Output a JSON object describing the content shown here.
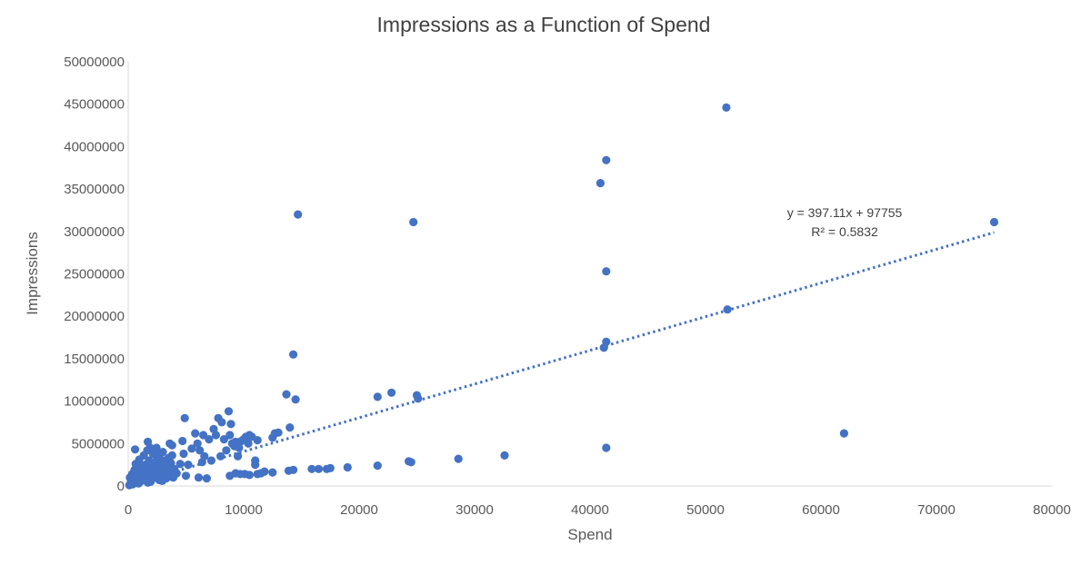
{
  "chart_data": {
    "type": "scatter",
    "title": "Impressions as a Function of Spend",
    "xlabel": "Spend",
    "ylabel": "Impressions",
    "xlim": [
      0,
      80000
    ],
    "ylim": [
      0,
      50000000
    ],
    "x_ticks": [
      0,
      10000,
      20000,
      30000,
      40000,
      50000,
      60000,
      70000,
      80000
    ],
    "y_ticks": [
      0,
      5000000,
      10000000,
      15000000,
      20000000,
      25000000,
      30000000,
      35000000,
      40000000,
      45000000,
      50000000
    ],
    "grid": false,
    "legend": "none",
    "colors": {
      "points": "#4472C4",
      "trendline": "#4472C4",
      "axis": "#d9d9d9"
    },
    "series": [
      {
        "points": [
          [
            100,
            100000
          ],
          [
            200,
            300000
          ],
          [
            300,
            500000
          ],
          [
            400,
            200000
          ],
          [
            500,
            800000
          ],
          [
            600,
            400000
          ],
          [
            700,
            1200000
          ],
          [
            800,
            600000
          ],
          [
            900,
            300000
          ],
          [
            1000,
            1500000
          ],
          [
            1100,
            900000
          ],
          [
            1200,
            2000000
          ],
          [
            1300,
            700000
          ],
          [
            1400,
            1100000
          ],
          [
            1500,
            2500000
          ],
          [
            1600,
            1800000
          ],
          [
            1700,
            400000
          ],
          [
            1800,
            3000000
          ],
          [
            1900,
            1300000
          ],
          [
            2000,
            2200000
          ],
          [
            2100,
            900000
          ],
          [
            2200,
            1600000
          ],
          [
            2300,
            2800000
          ],
          [
            2400,
            1000000
          ],
          [
            2500,
            3500000
          ],
          [
            2600,
            1900000
          ],
          [
            2700,
            700000
          ],
          [
            2800,
            2400000
          ],
          [
            2900,
            1200000
          ],
          [
            3000,
            4000000
          ],
          [
            3100,
            1700000
          ],
          [
            3200,
            3000000
          ],
          [
            3300,
            900000
          ],
          [
            3400,
            2100000
          ],
          [
            3500,
            3300000
          ],
          [
            3600,
            1400000
          ],
          [
            3700,
            2700000
          ],
          [
            3800,
            4800000
          ],
          [
            3900,
            1000000
          ],
          [
            4000,
            2000000
          ],
          [
            150,
            1000000
          ],
          [
            250,
            600000
          ],
          [
            350,
            1400000
          ],
          [
            450,
            900000
          ],
          [
            550,
            1900000
          ],
          [
            650,
            2600000
          ],
          [
            750,
            1300000
          ],
          [
            850,
            2100000
          ],
          [
            950,
            3100000
          ],
          [
            1050,
            500000
          ],
          [
            1150,
            1700000
          ],
          [
            1250,
            2400000
          ],
          [
            1350,
            3600000
          ],
          [
            1450,
            1200000
          ],
          [
            1550,
            2000000
          ],
          [
            1650,
            4200000
          ],
          [
            1750,
            1500000
          ],
          [
            1850,
            2900000
          ],
          [
            1950,
            500000
          ],
          [
            2050,
            1100000
          ],
          [
            2150,
            3800000
          ],
          [
            2250,
            2600000
          ],
          [
            2350,
            1400000
          ],
          [
            2450,
            4500000
          ],
          [
            2550,
            2200000
          ],
          [
            2650,
            1300000
          ],
          [
            2750,
            3200000
          ],
          [
            2850,
            1800000
          ],
          [
            2950,
            600000
          ],
          [
            3050,
            2500000
          ],
          [
            600,
            4300000
          ],
          [
            1700,
            5200000
          ],
          [
            1900,
            4500000
          ],
          [
            2300,
            4000000
          ],
          [
            3600,
            5000000
          ],
          [
            3800,
            3600000
          ],
          [
            4200,
            1500000
          ],
          [
            4500,
            2600000
          ],
          [
            4700,
            5300000
          ],
          [
            4800,
            3800000
          ],
          [
            4900,
            8000000
          ],
          [
            5000,
            1200000
          ],
          [
            5200,
            2500000
          ],
          [
            5500,
            4400000
          ],
          [
            5800,
            6200000
          ],
          [
            6000,
            5000000
          ],
          [
            6100,
            1000000
          ],
          [
            6200,
            4200000
          ],
          [
            6400,
            2800000
          ],
          [
            6500,
            6000000
          ],
          [
            6600,
            3500000
          ],
          [
            6800,
            900000
          ],
          [
            7000,
            5500000
          ],
          [
            7200,
            3000000
          ],
          [
            7400,
            6700000
          ],
          [
            7600,
            6000000
          ],
          [
            7800,
            8000000
          ],
          [
            8000,
            3500000
          ],
          [
            8100,
            7500000
          ],
          [
            8300,
            5500000
          ],
          [
            8500,
            4200000
          ],
          [
            8700,
            8800000
          ],
          [
            8800,
            6000000
          ],
          [
            8900,
            7300000
          ],
          [
            9000,
            5000000
          ],
          [
            9200,
            4700000
          ],
          [
            9300,
            5200000
          ],
          [
            9500,
            3500000
          ],
          [
            9600,
            4500000
          ],
          [
            9800,
            5300000
          ],
          [
            10000,
            5500000
          ],
          [
            10200,
            5800000
          ],
          [
            10400,
            5000000
          ],
          [
            10500,
            6000000
          ],
          [
            10700,
            5800000
          ],
          [
            11200,
            5400000
          ],
          [
            12500,
            5700000
          ],
          [
            12700,
            6200000
          ],
          [
            13000,
            6300000
          ],
          [
            14000,
            6900000
          ],
          [
            8800,
            1200000
          ],
          [
            9300,
            1500000
          ],
          [
            9700,
            1400000
          ],
          [
            10100,
            1400000
          ],
          [
            10500,
            1300000
          ],
          [
            11000,
            3000000
          ],
          [
            11000,
            2500000
          ],
          [
            11200,
            1400000
          ],
          [
            11500,
            1500000
          ],
          [
            11800,
            1700000
          ],
          [
            12500,
            1600000
          ],
          [
            13900,
            1800000
          ],
          [
            14300,
            1900000
          ],
          [
            15900,
            2000000
          ],
          [
            16500,
            2000000
          ],
          [
            17200,
            2000000
          ],
          [
            17500,
            2100000
          ],
          [
            19000,
            2200000
          ],
          [
            21600,
            2400000
          ],
          [
            24300,
            2900000
          ],
          [
            24500,
            2800000
          ],
          [
            28600,
            3200000
          ],
          [
            32600,
            3600000
          ],
          [
            41400,
            4500000
          ],
          [
            62000,
            6200000
          ],
          [
            13700,
            10800000
          ],
          [
            14300,
            15500000
          ],
          [
            14500,
            10200000
          ],
          [
            14700,
            32000000
          ],
          [
            21600,
            10500000
          ],
          [
            22800,
            11000000
          ],
          [
            24700,
            31100000
          ],
          [
            25000,
            10700000
          ],
          [
            25100,
            10300000
          ],
          [
            40900,
            35700000
          ],
          [
            41200,
            16300000
          ],
          [
            41400,
            38400000
          ],
          [
            41400,
            25300000
          ],
          [
            41400,
            17000000
          ],
          [
            51800,
            44600000
          ],
          [
            51900,
            20800000
          ],
          [
            75000,
            31100000
          ]
        ]
      }
    ],
    "trendline": {
      "type": "linear",
      "slope": 397.11,
      "intercept": 97755,
      "equation": "y = 397.11x + 97755",
      "r_squared": "R² = 0.5832"
    }
  }
}
